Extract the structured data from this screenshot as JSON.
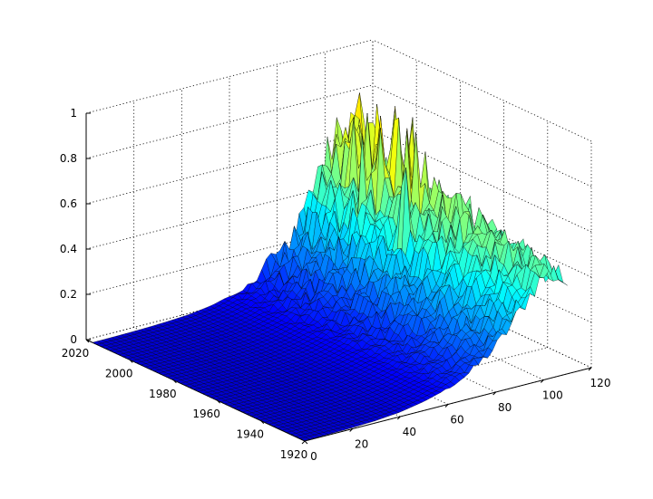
{
  "chart_data": {
    "type": "surface",
    "title": "",
    "xlabel": "",
    "ylabel": "",
    "zlabel": "",
    "x_axis": {
      "range": [
        0,
        120
      ],
      "ticks": [
        0,
        20,
        40,
        60,
        80,
        100,
        120
      ],
      "tick_labels": [
        "0",
        "20",
        "40",
        "60",
        "80",
        "100",
        "120"
      ]
    },
    "y_axis": {
      "range": [
        1920,
        2020
      ],
      "ticks": [
        1920,
        1940,
        1960,
        1980,
        2000,
        2020
      ],
      "tick_labels": [
        "1920",
        "1940",
        "1960",
        "1980",
        "2000",
        "2020"
      ]
    },
    "z_axis": {
      "range": [
        0,
        1
      ],
      "ticks": [
        0,
        0.2,
        0.4,
        0.6,
        0.8,
        1
      ],
      "tick_labels": [
        "0",
        "0.2",
        "0.4",
        "0.6",
        "0.8",
        "1"
      ]
    },
    "grid": true,
    "colormap": "jet",
    "surface_extent": {
      "x": [
        0,
        110
      ],
      "y": [
        1920,
        2017
      ]
    },
    "surface_profile": {
      "description_free_values": true,
      "x": [
        0,
        10,
        20,
        30,
        40,
        50,
        60,
        70,
        80,
        85,
        90,
        95,
        100,
        105,
        110
      ],
      "z_at_1920": [
        0.002,
        0.003,
        0.005,
        0.01,
        0.02,
        0.04,
        0.07,
        0.12,
        0.2,
        0.26,
        0.33,
        0.4,
        0.46,
        0.45,
        0.4
      ],
      "z_at_2017": [
        0.001,
        0.002,
        0.004,
        0.008,
        0.015,
        0.03,
        0.06,
        0.11,
        0.2,
        0.28,
        0.38,
        0.5,
        0.6,
        0.62,
        0.6
      ],
      "peak_z": 0.83,
      "peak_region_x": [
        95,
        110
      ]
    }
  }
}
